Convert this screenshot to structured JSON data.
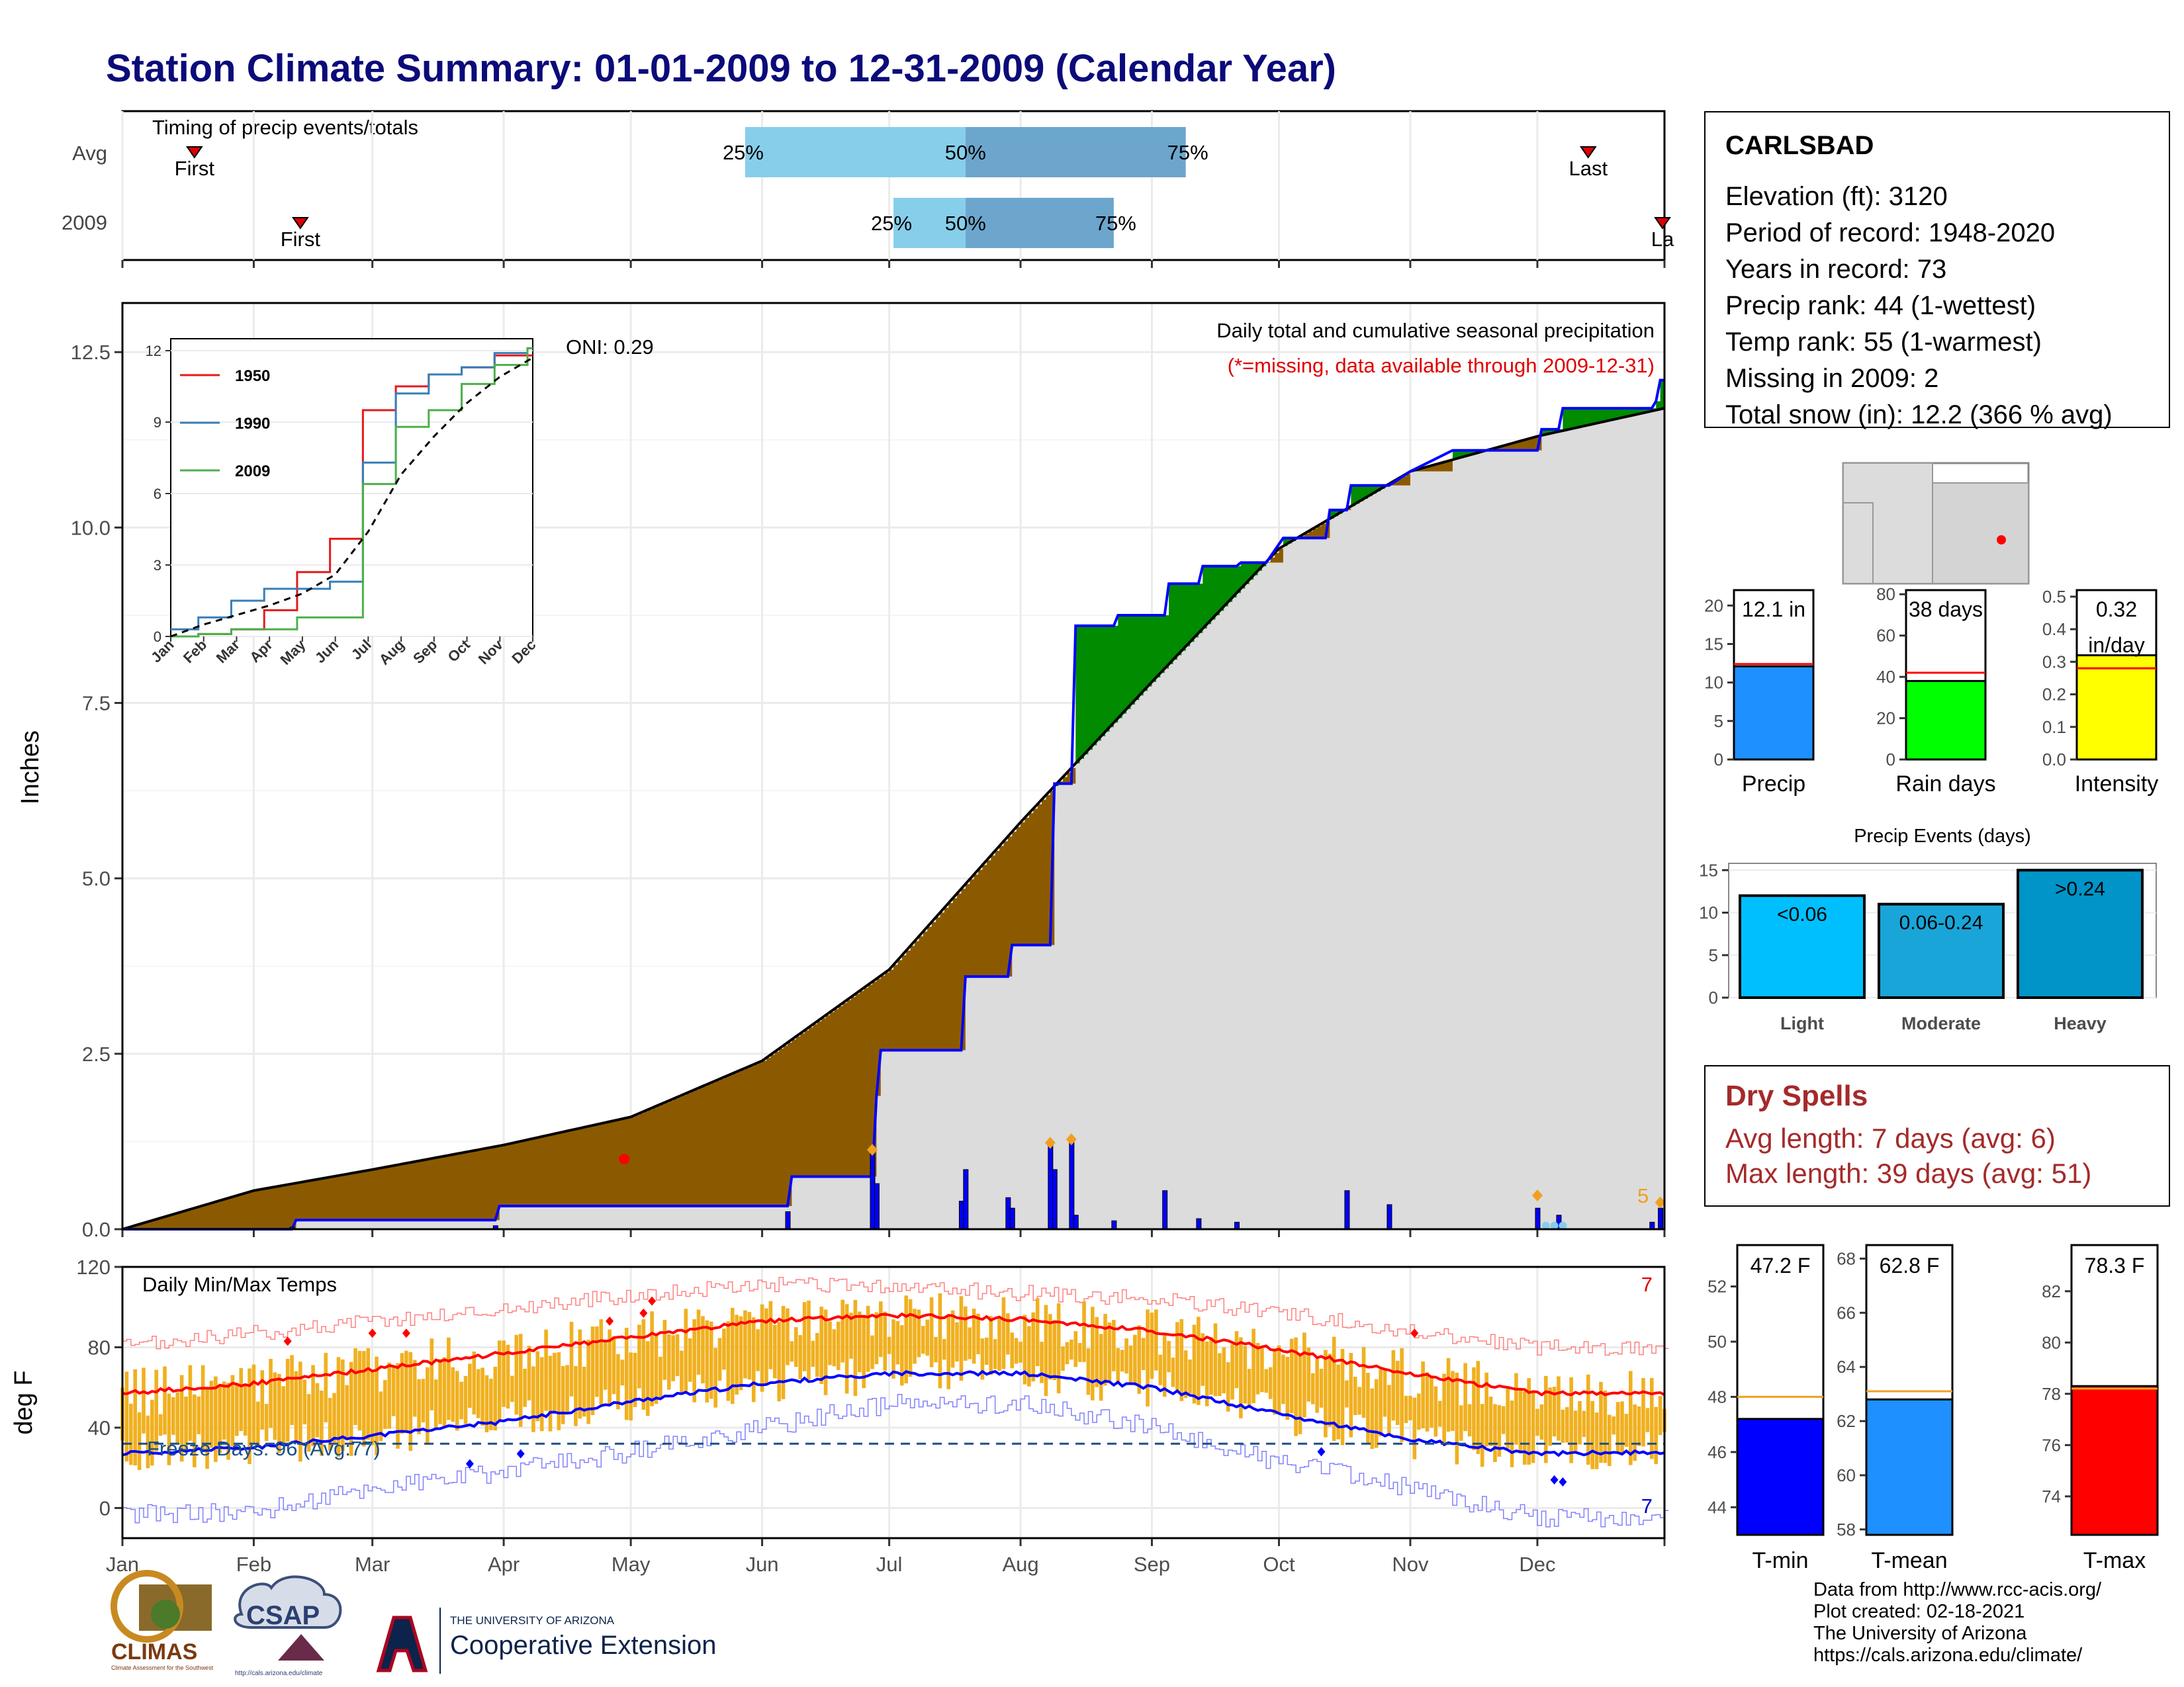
{
  "title": "Station Climate Summary: 01-01-2009 to 12-31-2009 (Calendar Year)",
  "timing_panel": {
    "title": "Timing of precip events/totals",
    "row_labels": [
      "Avg",
      "2009"
    ],
    "pct_labels": [
      "25%",
      "50%",
      "75%"
    ],
    "first_label": "First",
    "last_label": "Last",
    "last_label_2009": "La"
  },
  "precip_panel": {
    "ylabel": "Inches",
    "title": "Daily total and cumulative seasonal precipitation",
    "missing_note": "(*=missing, data available through 2009-12-31)",
    "oni": "ONI: 0.29",
    "corner_count": "5",
    "yticks": [
      "0.0",
      "2.5",
      "5.0",
      "7.5",
      "10.0",
      "12.5"
    ]
  },
  "inset": {
    "yticks": [
      "0",
      "3",
      "6",
      "9",
      "12"
    ],
    "xticks": [
      "Jan",
      "Feb",
      "Mar",
      "Apr",
      "May",
      "Jun",
      "Jul",
      "Aug",
      "Sep",
      "Oct",
      "Nov",
      "Dec"
    ],
    "legend": [
      "1950",
      "1990",
      "2009"
    ]
  },
  "temp_panel": {
    "ylabel": "deg F",
    "title": "Daily Min/Max Temps",
    "freeze_note": "Freeze Days: 96 (Avg:77)",
    "hot_count": "7",
    "cold_count": "7",
    "yticks": [
      "0",
      "40",
      "80",
      "120"
    ],
    "months": [
      "Jan",
      "Feb",
      "Mar",
      "Apr",
      "May",
      "Jun",
      "Jul",
      "Aug",
      "Sep",
      "Oct",
      "Nov",
      "Dec"
    ]
  },
  "station": {
    "name": "CARLSBAD",
    "lines": [
      "Elevation (ft): 3120",
      "Period of record: 1948-2020",
      "Years in record: 73",
      "Precip rank: 44 (1-wettest)",
      "Temp rank: 55 (1-warmest)",
      "Missing in 2009: 2",
      "Total snow (in): 12.2 (366 % avg)"
    ]
  },
  "mini_bars": [
    {
      "label": "Precip",
      "value_text": "12.1 in",
      "value": 12.1,
      "avg": 12.4,
      "yticks": [
        "0",
        "5",
        "10",
        "15",
        "20"
      ],
      "ymax": 22,
      "color": "#1e90ff"
    },
    {
      "label": "Rain days",
      "value_text": "38 days",
      "value": 38,
      "avg": 42,
      "yticks": [
        "0",
        "20",
        "40",
        "60",
        "80"
      ],
      "ymax": 82,
      "color": "#00ff00"
    },
    {
      "label": "Intensity",
      "value_text": "0.32",
      "value_text2": "in/day",
      "value": 0.32,
      "avg": 0.28,
      "yticks": [
        "0.0",
        "0.1",
        "0.2",
        "0.3",
        "0.4",
        "0.5"
      ],
      "ymax": 0.52,
      "color": "#ffff00"
    }
  ],
  "precip_events": {
    "title": "Precip Events (days)",
    "categories": [
      "Light",
      "Moderate",
      "Heavy"
    ],
    "bar_labels": [
      "<0.06",
      "0.06-0.24",
      ">0.24"
    ],
    "values": [
      12,
      11,
      15
    ],
    "yticks": [
      "0",
      "5",
      "10",
      "15"
    ],
    "colors": [
      "#00bfff",
      "#1aa5d8",
      "#0094c8"
    ]
  },
  "dry_spells": {
    "title": "Dry Spells",
    "avg_line": "Avg length: 7 days (avg: 6)",
    "max_line": "Max length: 39 days (avg: 51)"
  },
  "temp_bars": [
    {
      "label": "T-min",
      "value_text": "47.2 F",
      "value": 47.2,
      "avg": 48.0,
      "ymin": 43,
      "ymax": 53.5,
      "yticks": [
        "44",
        "46",
        "48",
        "50",
        "52"
      ],
      "color": "#0000ff"
    },
    {
      "label": "T-mean",
      "value_text": "62.8 F",
      "value": 62.8,
      "avg": 63.1,
      "ymin": 57.8,
      "ymax": 68.5,
      "yticks": [
        "58",
        "60",
        "62",
        "64",
        "66",
        "68"
      ],
      "color": "#1e90ff"
    },
    {
      "label": "T-max",
      "value_text": "78.3 F",
      "value": 78.3,
      "avg": 78.2,
      "ymin": 72.5,
      "ymax": 83.8,
      "yticks": [
        "74",
        "76",
        "78",
        "80",
        "82"
      ],
      "color": "#ff0000"
    }
  ],
  "footer": {
    "lines": [
      "Data from http://www.rcc-acis.org/",
      "Plot created: 02-18-2021",
      "The University of Arizona",
      "https://cals.arizona.edu/climate/"
    ]
  },
  "logos": {
    "climas": "CLIMAS",
    "climas_sub": "Climate Assessment for the Southwest",
    "csap": "CSAP",
    "csap_url": "http://cals.arizona.edu/climate",
    "ua_top": "THE UNIVERSITY OF ARIZONA",
    "ua_bottom": "Cooperative Extension"
  },
  "chart_data": [
    {
      "type": "bar",
      "title": "Timing of precip events/totals",
      "categories": [
        "Avg",
        "2009"
      ],
      "series": [
        {
          "name": "First",
          "values": [
            "Jan 18",
            "Feb 12"
          ]
        },
        {
          "name": "25%",
          "values": [
            "May 28",
            "Jul 02"
          ]
        },
        {
          "name": "50%",
          "values": [
            "Jul 19",
            "Jul 19"
          ]
        },
        {
          "name": "75%",
          "values": [
            "Sep 09",
            "Aug 23"
          ]
        },
        {
          "name": "Last",
          "values": [
            "Dec 13",
            "Dec 31"
          ]
        }
      ]
    },
    {
      "type": "area",
      "title": "Daily total and cumulative seasonal precipitation",
      "ylabel": "Inches",
      "ylim": [
        0,
        13.2
      ],
      "x_months": [
        "Jan",
        "Feb",
        "Mar",
        "Apr",
        "May",
        "Jun",
        "Jul",
        "Aug",
        "Sep",
        "Oct",
        "Nov",
        "Dec"
      ],
      "series": [
        {
          "name": "avg_cumulative",
          "x": [
            1,
            32,
            60,
            91,
            121,
            152,
            182,
            213,
            244,
            274,
            305,
            335,
            365
          ],
          "values": [
            0,
            0.55,
            0.85,
            1.2,
            1.6,
            2.4,
            3.7,
            5.8,
            7.8,
            9.7,
            10.8,
            11.3,
            11.7
          ]
        },
        {
          "name": "2009_cumulative",
          "x": [
            1,
            41,
            42,
            89,
            90,
            158,
            159,
            178,
            179,
            180,
            199,
            200,
            210,
            211,
            220,
            221,
            225,
            226,
            235,
            236,
            247,
            248,
            255,
            256,
            264,
            265,
            271,
            275,
            285,
            286,
            290,
            291,
            300,
            305,
            315,
            335,
            336,
            340,
            341,
            362,
            363,
            364,
            365
          ],
          "values": [
            0,
            0,
            0.13,
            0.13,
            0.33,
            0.33,
            0.75,
            0.75,
            1.9,
            2.55,
            2.55,
            3.6,
            3.6,
            4.05,
            4.05,
            6.35,
            6.35,
            8.6,
            8.6,
            8.75,
            8.75,
            9.2,
            9.2,
            9.45,
            9.45,
            9.5,
            9.5,
            9.85,
            9.85,
            10.25,
            10.25,
            10.6,
            10.6,
            10.8,
            11.1,
            11.1,
            11.4,
            11.4,
            11.7,
            11.7,
            11.8,
            12.1,
            12.1
          ]
        },
        {
          "name": "daily_precip",
          "x": [
            41,
            89,
            158,
            178,
            179,
            199,
            200,
            210,
            211,
            220,
            221,
            225,
            226,
            235,
            247,
            255,
            264,
            290,
            300,
            335,
            340,
            362,
            364
          ],
          "values": [
            0.03,
            0.05,
            0.25,
            1.15,
            0.65,
            0.4,
            0.85,
            0.45,
            0.3,
            1.25,
            0.85,
            1.3,
            0.2,
            0.12,
            0.55,
            0.15,
            0.1,
            0.55,
            0.35,
            0.3,
            0.2,
            0.1,
            0.3
          ]
        }
      ]
    },
    {
      "type": "line",
      "title": "",
      "xlabel": "",
      "ylabel": "",
      "ylim": [
        0,
        12.5
      ],
      "categories": [
        "Jan",
        "Feb",
        "Mar",
        "Apr",
        "May",
        "Jun",
        "Jul",
        "Aug",
        "Sep",
        "Oct",
        "Nov",
        "Dec"
      ],
      "series": [
        {
          "name": "1950",
          "values": [
            0,
            0.1,
            0.3,
            1.1,
            2.7,
            4.1,
            9.5,
            10.5,
            11.0,
            11.3,
            11.8,
            11.8
          ]
        },
        {
          "name": "1990",
          "values": [
            0.3,
            0.8,
            1.5,
            2.0,
            2.0,
            2.3,
            7.3,
            10.2,
            11.0,
            11.3,
            11.9,
            12.1
          ]
        },
        {
          "name": "2009",
          "values": [
            0,
            0.1,
            0.3,
            0.3,
            0.8,
            0.8,
            6.4,
            8.8,
            9.5,
            10.6,
            11.4,
            12.1
          ]
        },
        {
          "name": "avg",
          "values": [
            0,
            0.5,
            0.9,
            1.3,
            1.8,
            2.6,
            4.4,
            6.8,
            8.4,
            9.8,
            10.9,
            11.7
          ]
        }
      ]
    },
    {
      "type": "line",
      "title": "Daily Min/Max Temps",
      "ylabel": "deg F",
      "ylim": [
        -15,
        120
      ],
      "x_months": [
        "Jan",
        "Feb",
        "Mar",
        "Apr",
        "May",
        "Jun",
        "Jul",
        "Aug",
        "Sep",
        "Oct",
        "Nov",
        "Dec"
      ],
      "series": [
        {
          "name": "avg_max",
          "x": [
            1,
            32,
            60,
            91,
            121,
            152,
            182,
            213,
            244,
            274,
            305,
            335,
            365
          ],
          "values": [
            57,
            62,
            69,
            77,
            85,
            93,
            96,
            94,
            88,
            79,
            67,
            57,
            57
          ]
        },
        {
          "name": "avg_min",
          "x": [
            1,
            32,
            60,
            91,
            121,
            152,
            182,
            213,
            244,
            274,
            305,
            335,
            365
          ],
          "values": [
            27,
            30,
            36,
            43,
            53,
            62,
            67,
            67,
            60,
            47,
            34,
            27,
            28
          ]
        },
        {
          "name": "record_max",
          "x": [
            1,
            32,
            60,
            91,
            121,
            152,
            182,
            213,
            244,
            274,
            305,
            335,
            365
          ],
          "values": [
            80,
            87,
            93,
            99,
            106,
            111,
            110,
            107,
            104,
            97,
            88,
            80,
            80
          ]
        },
        {
          "name": "record_min",
          "x": [
            1,
            32,
            60,
            91,
            121,
            152,
            182,
            213,
            244,
            274,
            305,
            335,
            365
          ],
          "values": [
            -3,
            -2,
            10,
            18,
            28,
            40,
            52,
            52,
            40,
            23,
            10,
            -5,
            -5
          ]
        },
        {
          "name": "freeze_line",
          "x": [
            1,
            365
          ],
          "values": [
            32,
            32
          ]
        }
      ]
    },
    {
      "type": "bar",
      "categories": [
        "Precip",
        "Rain days",
        "Intensity"
      ],
      "series": [
        {
          "name": "2009",
          "values": [
            12.1,
            38,
            0.32
          ]
        },
        {
          "name": "avg",
          "values": [
            12.4,
            42,
            0.28
          ]
        }
      ]
    },
    {
      "type": "bar",
      "title": "Precip Events (days)",
      "categories": [
        "Light",
        "Moderate",
        "Heavy"
      ],
      "values": [
        12,
        11,
        15
      ]
    },
    {
      "type": "bar",
      "categories": [
        "T-min",
        "T-mean",
        "T-max"
      ],
      "series": [
        {
          "name": "2009",
          "values": [
            47.2,
            62.8,
            78.3
          ]
        },
        {
          "name": "avg",
          "values": [
            48.0,
            63.1,
            78.2
          ]
        }
      ]
    }
  ]
}
